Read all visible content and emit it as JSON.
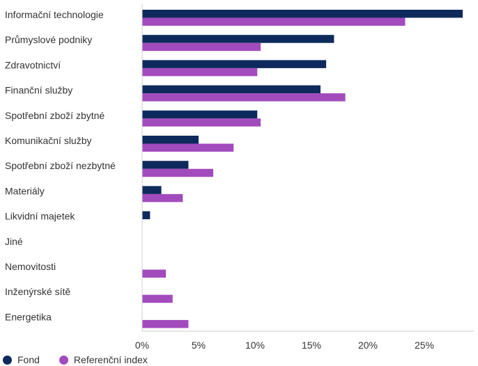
{
  "chart_data": {
    "type": "bar",
    "orientation": "horizontal",
    "categories": [
      "Informační technologie",
      "Průmyslové podniky",
      "Zdravotnictví",
      "Finanční služby",
      "Spotřební zboží zbytné",
      "Komunikační služby",
      "Spotřební zboží nezbytné",
      "Materiály",
      "Likvidní majetek",
      "Jiné",
      "Nemovitosti",
      "Inženýrské sítě",
      "Energetika"
    ],
    "series": [
      {
        "name": "Fond",
        "color": "#0e2a5c",
        "values": [
          28.4,
          17.0,
          16.3,
          15.8,
          10.2,
          5.0,
          4.1,
          1.7,
          0.7,
          0,
          0,
          0,
          0
        ]
      },
      {
        "name": "Referenční index",
        "color": "#a24bbd",
        "values": [
          23.3,
          10.5,
          10.2,
          18.0,
          10.5,
          8.1,
          6.3,
          3.6,
          0,
          0,
          2.1,
          2.7,
          4.1
        ]
      }
    ],
    "xlim": [
      0,
      30
    ],
    "xticks": [
      0,
      5,
      10,
      15,
      20,
      25
    ],
    "tick_format": "{v}%",
    "grid": false,
    "legend_position": "bottom-left",
    "xlabel": "",
    "ylabel": "",
    "title": ""
  }
}
